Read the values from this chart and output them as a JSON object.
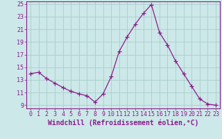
{
  "x": [
    0,
    1,
    2,
    3,
    4,
    5,
    6,
    7,
    8,
    9,
    10,
    11,
    12,
    13,
    14,
    15,
    16,
    17,
    18,
    19,
    20,
    21,
    22,
    23
  ],
  "y": [
    14.0,
    14.2,
    13.2,
    12.5,
    11.8,
    11.2,
    10.8,
    10.5,
    9.5,
    10.8,
    13.5,
    17.5,
    19.8,
    21.8,
    23.5,
    24.9,
    20.5,
    18.5,
    16.0,
    14.0,
    12.0,
    10.0,
    9.2,
    9.0
  ],
  "line_color": "#8b1a8b",
  "marker": "+",
  "marker_size": 4,
  "background_color": "#cce8e8",
  "grid_color": "#aacccc",
  "xlabel": "Windchill (Refroidissement éolien,°C)",
  "ylim_min": 8.5,
  "ylim_max": 25.4,
  "xlim_min": -0.5,
  "xlim_max": 23.5,
  "yticks": [
    9,
    11,
    13,
    15,
    17,
    19,
    21,
    23,
    25
  ],
  "xticks": [
    0,
    1,
    2,
    3,
    4,
    5,
    6,
    7,
    8,
    9,
    10,
    11,
    12,
    13,
    14,
    15,
    16,
    17,
    18,
    19,
    20,
    21,
    22,
    23
  ],
  "tick_fontsize": 6,
  "label_fontsize": 7
}
